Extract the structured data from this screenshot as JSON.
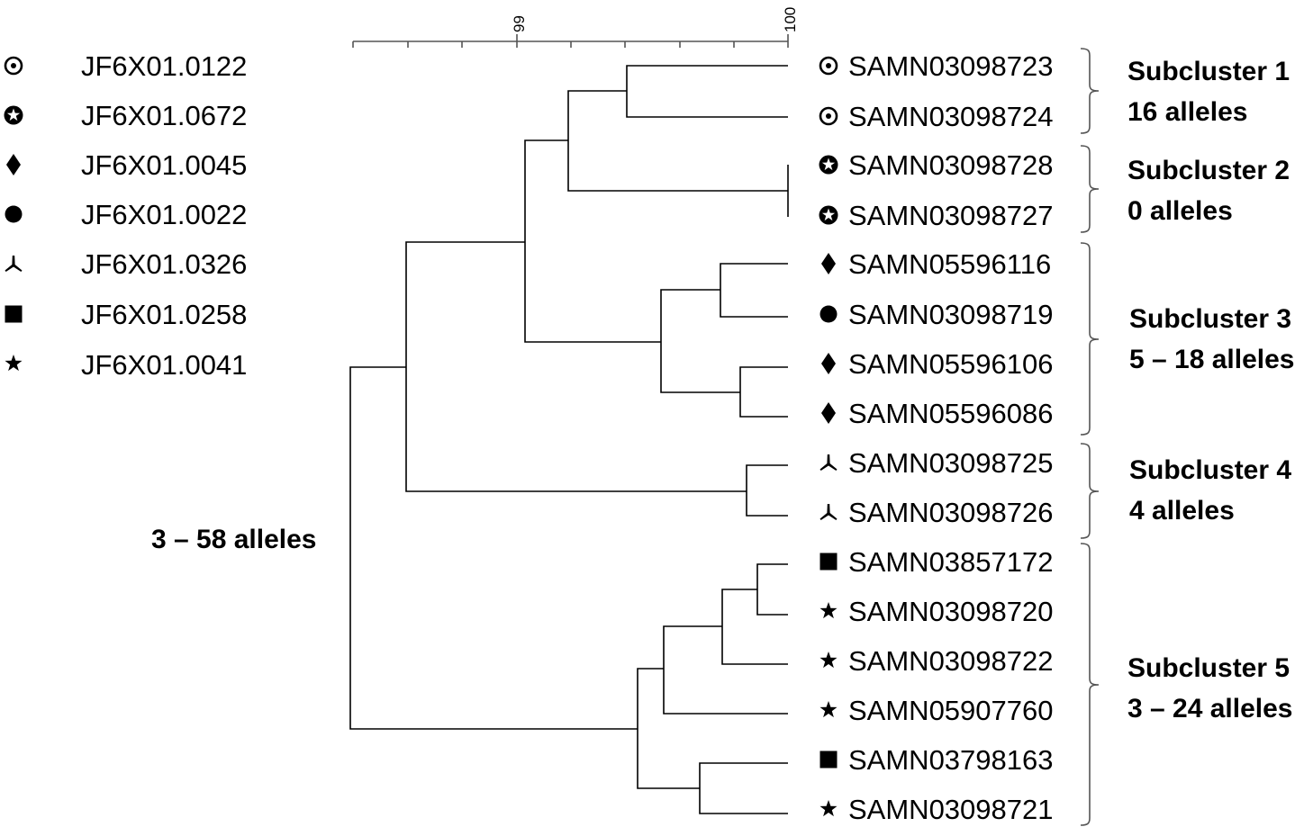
{
  "scale": {
    "tick_labels": [
      "99",
      "100"
    ]
  },
  "legend": [
    {
      "symbol": "circled-dot-icon",
      "label": "JF6X01.0122"
    },
    {
      "symbol": "circled-star-icon",
      "label": "JF6X01.0672"
    },
    {
      "symbol": "diamond-icon",
      "label": "JF6X01.0045"
    },
    {
      "symbol": "circle-icon",
      "label": "JF6X01.0022"
    },
    {
      "symbol": "tri-branch-icon",
      "label": "JF6X01.0326"
    },
    {
      "symbol": "square-icon",
      "label": "JF6X01.0258"
    },
    {
      "symbol": "star-icon",
      "label": "JF6X01.0041"
    }
  ],
  "leaves": [
    {
      "symbol": "circled-dot-icon",
      "label": "SAMN03098723"
    },
    {
      "symbol": "circled-dot-icon",
      "label": "SAMN03098724"
    },
    {
      "symbol": "circled-star-icon",
      "label": "SAMN03098728"
    },
    {
      "symbol": "circled-star-icon",
      "label": "SAMN03098727"
    },
    {
      "symbol": "diamond-icon",
      "label": "SAMN05596116"
    },
    {
      "symbol": "circle-icon",
      "label": "SAMN03098719"
    },
    {
      "symbol": "diamond-icon",
      "label": "SAMN05596106"
    },
    {
      "symbol": "diamond-icon",
      "label": "SAMN05596086"
    },
    {
      "symbol": "tri-branch-icon",
      "label": "SAMN03098725"
    },
    {
      "symbol": "tri-branch-icon",
      "label": "SAMN03098726"
    },
    {
      "symbol": "square-icon",
      "label": "SAMN03857172"
    },
    {
      "symbol": "star-icon",
      "label": "SAMN03098720"
    },
    {
      "symbol": "star-icon",
      "label": "SAMN03098722"
    },
    {
      "symbol": "star-icon",
      "label": "SAMN05907760"
    },
    {
      "symbol": "square-icon",
      "label": "SAMN03798163"
    },
    {
      "symbol": "star-icon",
      "label": "SAMN03098721"
    }
  ],
  "subclusters": [
    {
      "name": "Subcluster 1",
      "alleles": "16 alleles"
    },
    {
      "name": "Subcluster 2",
      "alleles": "0 alleles"
    },
    {
      "name": "Subcluster 3",
      "alleles": "5 – 18 alleles"
    },
    {
      "name": "Subcluster 4",
      "alleles": "4 alleles"
    },
    {
      "name": "Subcluster 5",
      "alleles": "3 – 24 alleles"
    }
  ],
  "root_annotation": "3 – 58 alleles"
}
